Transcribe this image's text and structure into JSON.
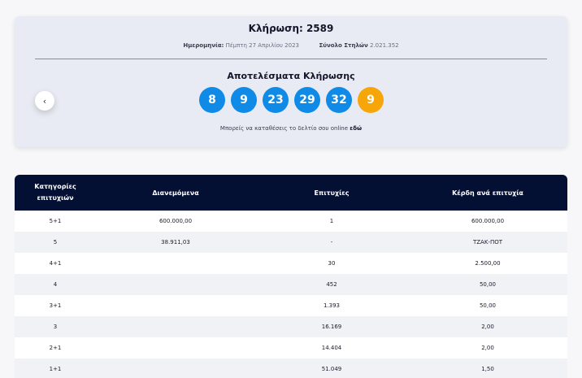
{
  "draw": {
    "title": "Κλήρωση: 2589",
    "date_label": "Ημερομηνία:",
    "date_value": "Πέμπτη 27 Απριλίου 2023",
    "columns_label": "Σύνολο Στηλών",
    "columns_value": "2.021.352",
    "results_title": "Αποτελέσματα Κλήρωσης",
    "prev_icon": "‹",
    "numbers": [
      "8",
      "9",
      "23",
      "29",
      "32"
    ],
    "joker": "9",
    "online_text": "Μπορείς να καταθέσεις το δελτίο σου online",
    "online_link": "εδώ"
  },
  "colors": {
    "ball": "#0f8ae6",
    "joker": "#f6a609",
    "header": "#041033"
  },
  "table": {
    "headers": {
      "category_line1": "Κατηγορίες",
      "category_line2": "επιτυχιών",
      "distributed": "Διανεμόμενα",
      "winners": "Επιτυχίες",
      "prize": "Κέρδη ανά επιτυχία"
    },
    "rows": [
      {
        "category": "5+1",
        "distributed": "600.000,00",
        "winners": "1",
        "prize": "600.000,00"
      },
      {
        "category": "5",
        "distributed": "38.911,03",
        "winners": "-",
        "prize": "ΤΖΑΚ-ΠΟΤ"
      },
      {
        "category": "4+1",
        "distributed": "",
        "winners": "30",
        "prize": "2.500,00"
      },
      {
        "category": "4",
        "distributed": "",
        "winners": "452",
        "prize": "50,00"
      },
      {
        "category": "3+1",
        "distributed": "",
        "winners": "1.393",
        "prize": "50,00"
      },
      {
        "category": "3",
        "distributed": "",
        "winners": "16.169",
        "prize": "2,00"
      },
      {
        "category": "2+1",
        "distributed": "",
        "winners": "14.404",
        "prize": "2,00"
      },
      {
        "category": "1+1",
        "distributed": "",
        "winners": "51.049",
        "prize": "1,50"
      }
    ]
  }
}
